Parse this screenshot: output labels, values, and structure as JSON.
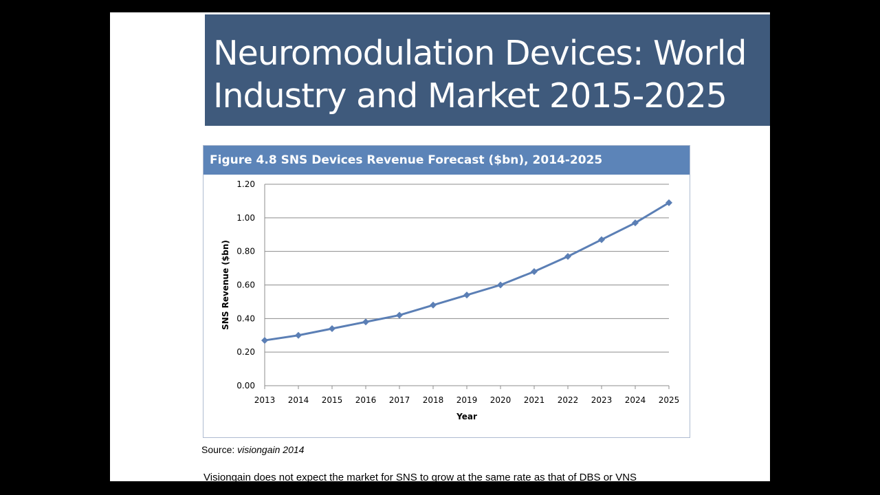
{
  "slide": {
    "title": "Neuromodulation Devices: World Industry and Market 2015-2025",
    "figure_title": "Figure 4.8 SNS Devices Revenue Forecast ($bn), 2014-2025",
    "source_label": "Source:",
    "source_value": "visiongain 2014",
    "body_text": "Visiongain does not expect the market for SNS to grow at the same rate as that of DBS or VNS",
    "colors": {
      "banner": "#3f5a7c",
      "figure_header": "#5c84b8",
      "series": "#5b7fb5"
    }
  },
  "chart_data": {
    "type": "line",
    "xlabel": "Year",
    "ylabel": "SNS Revenue ($bn)",
    "x": [
      2013,
      2014,
      2015,
      2016,
      2017,
      2018,
      2019,
      2020,
      2021,
      2022,
      2023,
      2024,
      2025
    ],
    "y_ticks": [
      "0.00",
      "0.20",
      "0.40",
      "0.60",
      "0.80",
      "1.00",
      "1.20"
    ],
    "ylim": [
      0,
      1.2
    ],
    "grid": true,
    "series": [
      {
        "values": [
          0.27,
          0.3,
          0.34,
          0.38,
          0.42,
          0.48,
          0.54,
          0.6,
          0.68,
          0.77,
          0.87,
          0.97,
          1.09
        ]
      }
    ]
  }
}
